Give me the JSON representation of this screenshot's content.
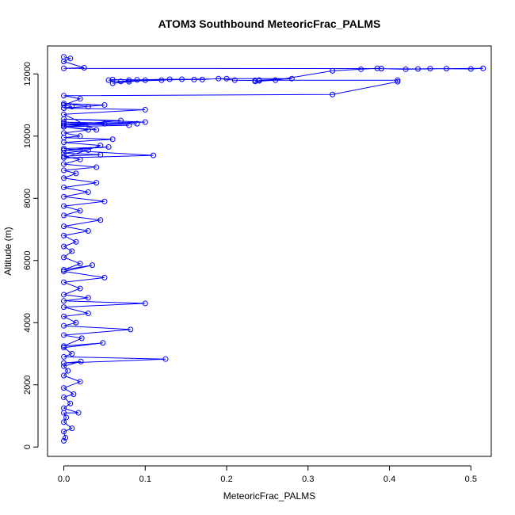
{
  "chart_data": {
    "type": "line",
    "title": "ATOM3 Southbound MeteoricFrac_PALMS",
    "xlabel": "MeteoricFrac_PALMS",
    "ylabel": "Altitude (m)",
    "xlim": [
      -0.02,
      0.525
    ],
    "ylim": [
      -300,
      12900
    ],
    "xticks": [
      0.0,
      0.1,
      0.2,
      0.3,
      0.4,
      0.5
    ],
    "xtick_labels": [
      "0.0",
      "0.1",
      "0.2",
      "0.3",
      "0.4",
      "0.5"
    ],
    "yticks": [
      0,
      2000,
      4000,
      6000,
      8000,
      10000,
      12000
    ],
    "ytick_labels": [
      "0",
      "2000",
      "4000",
      "6000",
      "8000",
      "10000",
      "12000"
    ],
    "grid": false,
    "marker": "open-circle",
    "series": [
      {
        "color": "#0000ff",
        "x": [
          0.0,
          0.002,
          0.0,
          0.01,
          0.0,
          0.003,
          0.0,
          0.018,
          0.0,
          0.008,
          0.0,
          0.012,
          0.0,
          0.02,
          0.0,
          0.005,
          0.0,
          0.021,
          0.0,
          0.125,
          0.0,
          0.01,
          0.0,
          0.048,
          0.0,
          0.022,
          0.0,
          0.082,
          0.0,
          0.015,
          0.0,
          0.03,
          0.0,
          0.1,
          0.0,
          0.03,
          0.0,
          0.02,
          0.0,
          0.05,
          0.0,
          0.035,
          0.0,
          0.02,
          0.0,
          0.01,
          0.0,
          0.015,
          0.0,
          0.03,
          0.0,
          0.045,
          0.0,
          0.02,
          0.0,
          0.05,
          0.0,
          0.03,
          0.0,
          0.04,
          0.0,
          0.015,
          0.0,
          0.04,
          0.0,
          0.02,
          0.0,
          0.045,
          0.0,
          0.03,
          0.0,
          0.055,
          0.0,
          0.11,
          0.0,
          0.045,
          0.0,
          0.06,
          0.0,
          0.02,
          0.0,
          0.03,
          0.0,
          0.05,
          0.0,
          0.09,
          0.0,
          0.07,
          0.0,
          0.1,
          0.0,
          0.08,
          0.0,
          0.04,
          0.0,
          0.1,
          0.0,
          0.05,
          0.0,
          0.03,
          0.0,
          0.01,
          0.0,
          0.02,
          0.0,
          0.33,
          0.41,
          0.41,
          0.24,
          0.28,
          0.2,
          0.1,
          0.08,
          0.06,
          0.08,
          0.16,
          0.145,
          0.12,
          0.07,
          0.055,
          0.06,
          0.09,
          0.13,
          0.17,
          0.19,
          0.21,
          0.235,
          0.24,
          0.235,
          0.26,
          0.33,
          0.365,
          0.385,
          0.39,
          0.435,
          0.45,
          0.5,
          0.515,
          0.47,
          0.42,
          0.39,
          0.0,
          0.025,
          0.0,
          0.008,
          0.0
        ],
        "y": [
          200,
          300,
          500,
          600,
          800,
          950,
          1100,
          1100,
          1250,
          1400,
          1600,
          1700,
          1900,
          2100,
          2300,
          2450,
          2600,
          2750,
          2700,
          2830,
          2900,
          3000,
          3200,
          3350,
          3250,
          3500,
          3600,
          3780,
          3900,
          4000,
          4200,
          4300,
          4500,
          4620,
          4700,
          4800,
          4900,
          5100,
          5300,
          5450,
          5650,
          5850,
          5700,
          5900,
          6100,
          6300,
          6450,
          6600,
          6800,
          6950,
          7100,
          7300,
          7450,
          7600,
          7750,
          7900,
          8050,
          8200,
          8350,
          8500,
          8650,
          8800,
          8900,
          9000,
          9100,
          9250,
          9350,
          9400,
          9450,
          9550,
          9600,
          9650,
          9550,
          9380,
          9300,
          9700,
          9800,
          9900,
          9950,
          10000,
          10100,
          10200,
          10300,
          10400,
          10450,
          10400,
          10350,
          10500,
          10550,
          10450,
          10400,
          10350,
          10300,
          10200,
          10700,
          10850,
          10900,
          11000,
          11050,
          10950,
          10900,
          10950,
          11000,
          11200,
          11300,
          11340,
          11750,
          11800,
          11800,
          11850,
          11850,
          11800,
          11750,
          11700,
          11800,
          11820,
          11830,
          11800,
          11760,
          11800,
          11820,
          11810,
          11830,
          11820,
          11850,
          11800,
          11790,
          11780,
          11760,
          11800,
          12100,
          12150,
          12180,
          12170,
          12160,
          12170,
          12160,
          12180,
          12170,
          12150,
          12170,
          12180,
          12200,
          12400,
          12500,
          12550
        ]
      }
    ]
  }
}
